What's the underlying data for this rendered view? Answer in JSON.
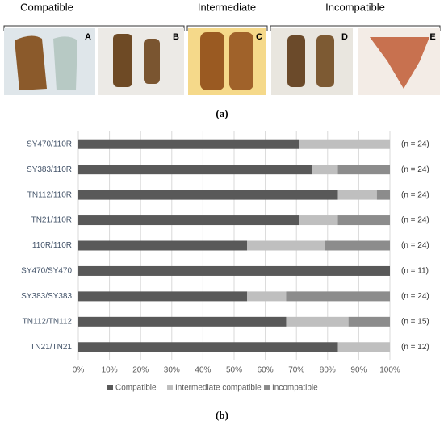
{
  "panel_a": {
    "groups": [
      "Compatible",
      "Intermediate",
      "Incompatible"
    ],
    "letters": [
      "A",
      "B",
      "C",
      "D",
      "E"
    ],
    "caption": "(a)"
  },
  "chart_data": {
    "type": "stacked-barh",
    "categories": [
      "SY470/110R",
      "SY383/110R",
      "TN112/110R",
      "TN21/110R",
      "110R/110R",
      "SY470/SY470",
      "SY383/SY383",
      "TN112/TN112",
      "TN21/TN21"
    ],
    "series": [
      {
        "name": "Compatible",
        "color": "#595959",
        "values": [
          70.8,
          75,
          83.3,
          70.8,
          54.2,
          100,
          54.2,
          66.7,
          83.3
        ]
      },
      {
        "name": "Intermediate compatible",
        "color": "#bfbfbf",
        "values": [
          29.2,
          8.3,
          12.5,
          12.5,
          25,
          0,
          12.5,
          20,
          16.7
        ]
      },
      {
        "name": "Incompatible",
        "color": "#8c8c8c",
        "values": [
          0,
          16.7,
          4.2,
          16.7,
          20.8,
          0,
          33.3,
          13.3,
          0
        ]
      }
    ],
    "n_labels": [
      "(n = 24)",
      "(n = 24)",
      "(n = 24)",
      "(n = 24)",
      "(n = 24)",
      "(n = 11)",
      "(n = 24)",
      "(n = 15)",
      "(n = 12)"
    ],
    "xlim": [
      0,
      100
    ],
    "xticks": [
      {
        "value": 0,
        "label": "0%"
      },
      {
        "value": 10,
        "label": "10%"
      },
      {
        "value": 20,
        "label": "20%"
      },
      {
        "value": 30,
        "label": "30%"
      },
      {
        "value": 40,
        "label": "40%"
      },
      {
        "value": 50,
        "label": "50%"
      },
      {
        "value": 60,
        "label": "60%"
      },
      {
        "value": 70,
        "label": "70%"
      },
      {
        "value": 80,
        "label": "80%"
      },
      {
        "value": 90,
        "label": "90%"
      },
      {
        "value": 100,
        "label": "100%"
      }
    ],
    "grid": true,
    "legend": "bottom",
    "caption": "(b)"
  }
}
